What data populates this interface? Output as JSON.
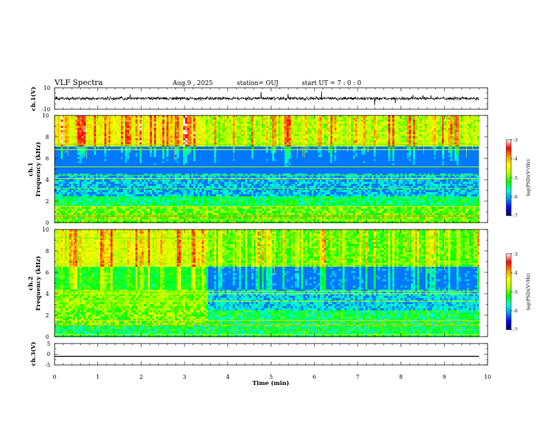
{
  "header": {
    "title": "VLF Spectra",
    "date": "Aug.9 , 2025",
    "station": "station= OUJ",
    "start": "start UT = 7 : 0 : 0"
  },
  "chart_data": [
    {
      "id": "ch1-waveform",
      "type": "line",
      "ylabel": "ch.1(V)",
      "ylim": [
        -10,
        10
      ],
      "y_tick_labels": [
        "10",
        "-10"
      ],
      "baseline": 0,
      "amplitude_typical": 1.2,
      "x_range_min": [
        0,
        9.8
      ]
    },
    {
      "id": "ch1-spectrogram",
      "type": "heatmap",
      "ylabel": "Frequency (kHz)",
      "channel_label": "ch.1",
      "ylim": [
        0,
        10
      ],
      "y_tick_labels": [
        "0",
        "2",
        "4",
        "6",
        "8",
        "10"
      ],
      "x_range_min": [
        0,
        9.8
      ]
    },
    {
      "id": "ch2-spectrogram",
      "type": "heatmap",
      "ylabel": "Frequency (kHz)",
      "channel_label": "ch.2",
      "ylim": [
        0,
        10
      ],
      "y_tick_labels": [
        "0",
        "2",
        "4",
        "6",
        "8",
        "10"
      ],
      "x_range_min": [
        0,
        9.8
      ]
    },
    {
      "id": "ch3-waveform",
      "type": "line",
      "ylabel": "ch.3(V)",
      "ylim": [
        -5,
        5
      ],
      "y_tick_labels": [
        "5",
        "0",
        "-5"
      ],
      "baseline": -1,
      "x_range_min": [
        0,
        9.8
      ],
      "xlabel": "Time (min)",
      "xlim": [
        0,
        10
      ],
      "x_tick_labels": [
        "0",
        "1",
        "2",
        "3",
        "4",
        "5",
        "6",
        "7",
        "8",
        "9",
        "10"
      ]
    }
  ],
  "colorbar": {
    "label": "log(PSD)(V²/Hz)",
    "range": [
      -7,
      -3
    ],
    "tick_labels": [
      "-3",
      "-4",
      "-5",
      "-6",
      "-7"
    ],
    "colors": [
      "#000064",
      "#0000ff",
      "#0096ff",
      "#00ffd2",
      "#00ff00",
      "#b4ff00",
      "#ffff00",
      "#ff9600",
      "#ff0000",
      "#ffffff"
    ]
  }
}
